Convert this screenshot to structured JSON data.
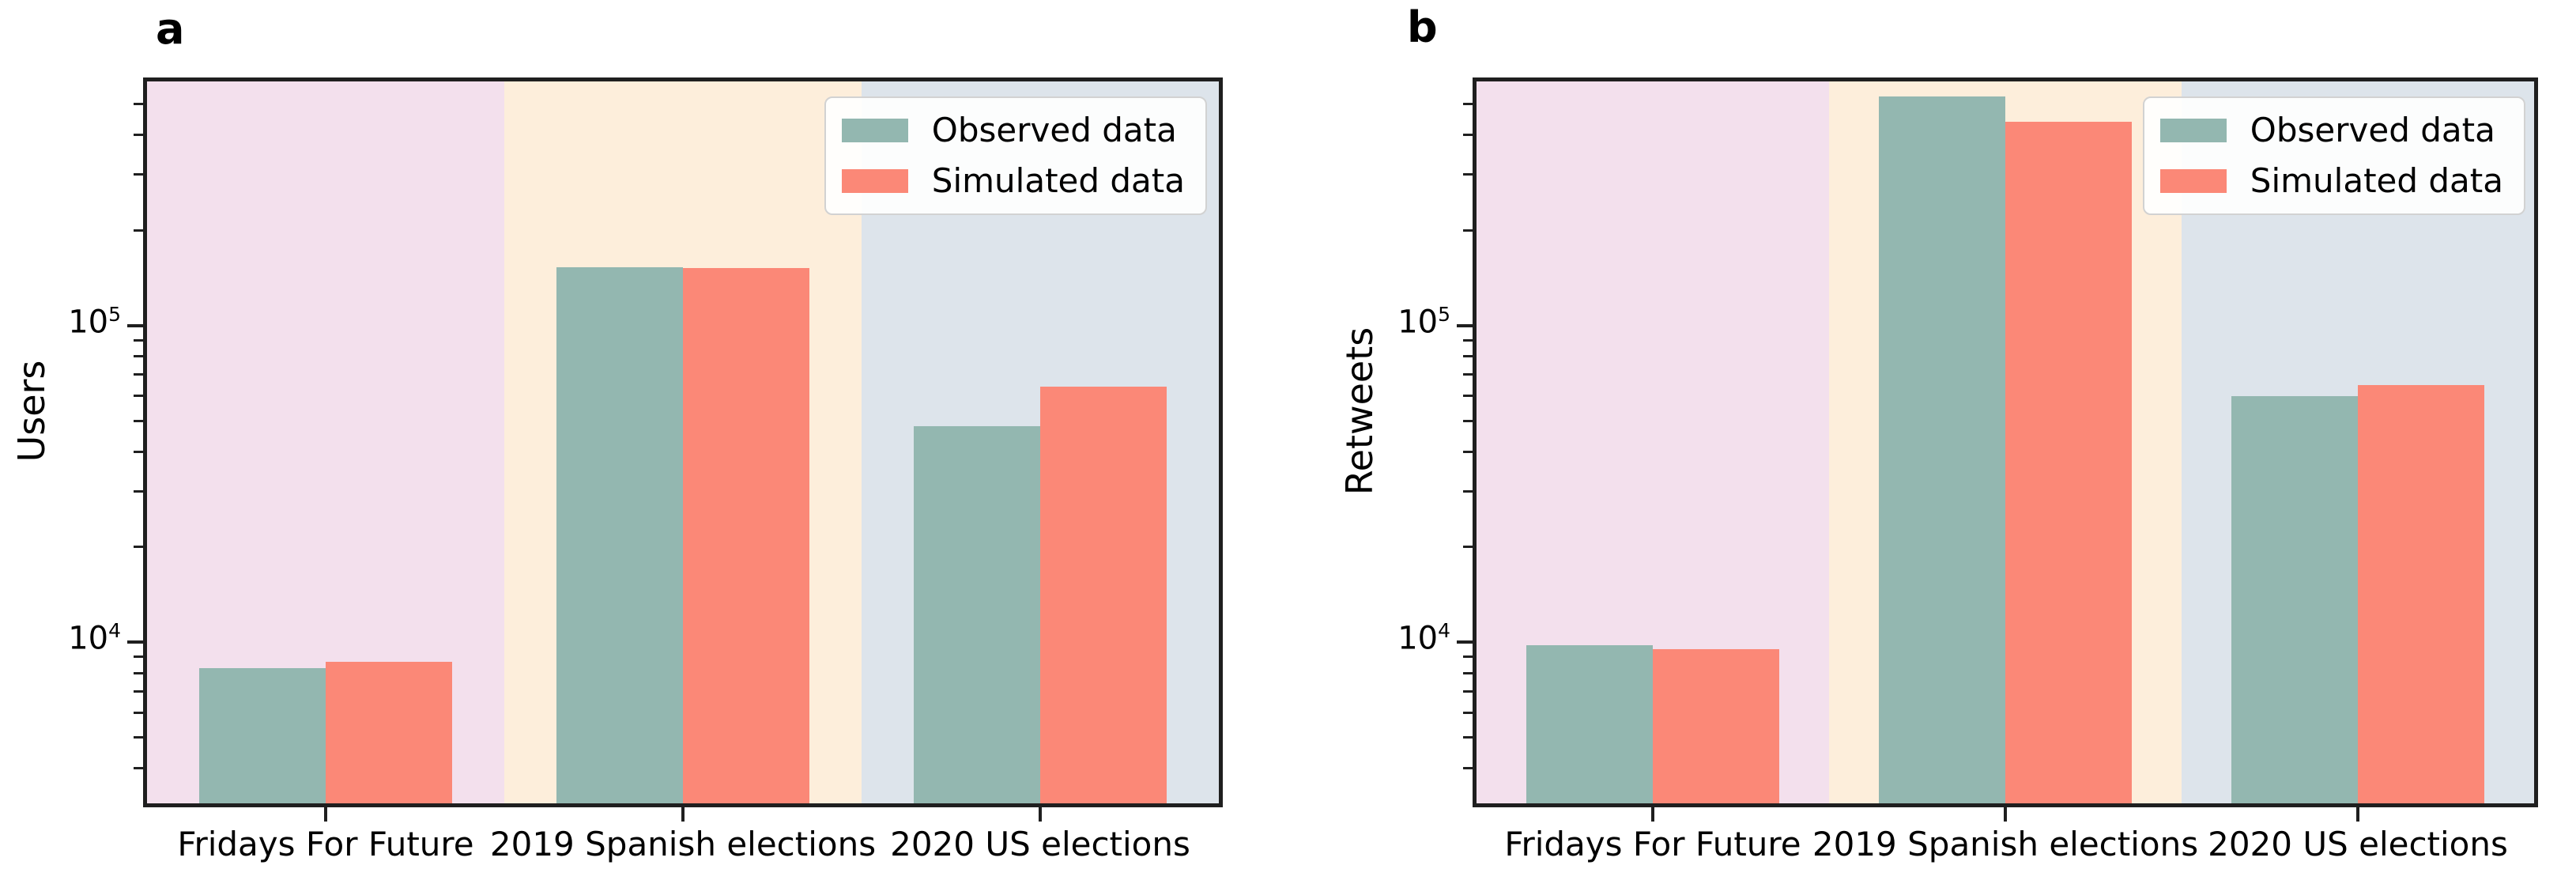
{
  "chart_data": [
    {
      "type": "bar",
      "panel_label": "a",
      "title": "",
      "xlabel": "",
      "ylabel": "Users",
      "yscale": "log",
      "ylim": [
        3100,
        590000
      ],
      "ytick_exponents": [
        4,
        5
      ],
      "ytick_labels": [
        "10^4",
        "10^5"
      ],
      "grid": false,
      "categories": [
        "Fridays For Future",
        "2019 Spanish elections",
        "2020 US elections"
      ],
      "series": [
        {
          "name": "Observed data",
          "color": "#93b7b0",
          "values": [
            8300,
            153000,
            48000
          ]
        },
        {
          "name": "Simulated data",
          "color": "#fb8877",
          "values": [
            8700,
            152000,
            64000
          ]
        }
      ],
      "band_colors": [
        "#f3e0ed",
        "#fdeedb",
        "#dde4eb"
      ],
      "legend": {
        "position": "upper right",
        "entries": [
          "Observed data",
          "Simulated data"
        ]
      }
    },
    {
      "type": "bar",
      "panel_label": "b",
      "title": "",
      "xlabel": "",
      "ylabel": "Retweets",
      "yscale": "log",
      "ylim": [
        3100,
        590000
      ],
      "ytick_exponents": [
        4,
        5
      ],
      "ytick_labels": [
        "10^4",
        "10^5"
      ],
      "grid": false,
      "categories": [
        "Fridays For Future",
        "2019 Spanish elections",
        "2020 US elections"
      ],
      "series": [
        {
          "name": "Observed data",
          "color": "#93b7b0",
          "values": [
            9800,
            530000,
            60000
          ]
        },
        {
          "name": "Simulated data",
          "color": "#fb8877",
          "values": [
            9500,
            440000,
            65000
          ]
        }
      ],
      "band_colors": [
        "#f3e0ed",
        "#fdeedb",
        "#dde4eb"
      ],
      "legend": {
        "position": "upper right",
        "entries": [
          "Observed data",
          "Simulated data"
        ]
      }
    }
  ]
}
